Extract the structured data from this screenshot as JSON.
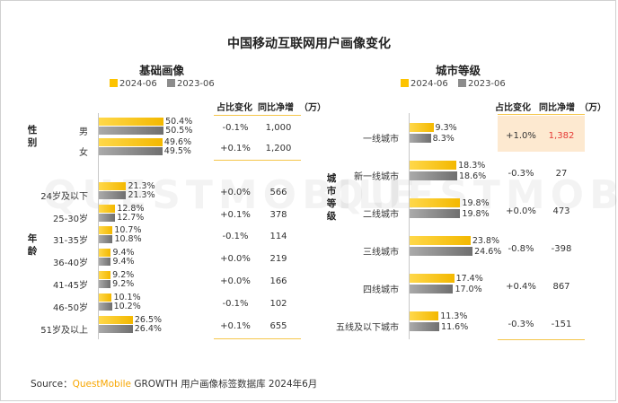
{
  "title": "中国移动互联网用户画像变化",
  "legend": {
    "y2024": "2024-06",
    "y2023": "2023-06"
  },
  "table_headers": {
    "share_change": "占比变化",
    "net_growth": "同比净增",
    "unit": "（万）"
  },
  "colors": {
    "y2024": "#fdc300",
    "y2023": "#8c8c8c",
    "accent": "#f7a600",
    "negative": "#e53935"
  },
  "group_labels": {
    "gender": "性别",
    "age": "年龄",
    "city": "城市等级"
  },
  "watermark": "QUESTMOBILE",
  "source": {
    "prefix": "Source：",
    "brand": "QuestMobile",
    "text": " GROWTH 用户画像标签数据库 2024年6月"
  },
  "chart_data": [
    {
      "type": "bar",
      "orientation": "horizontal",
      "title": "基础画像",
      "unit": "%",
      "groups": [
        {
          "label": "性别",
          "categories": [
            "男",
            "女"
          ]
        },
        {
          "label": "年龄",
          "categories": [
            "24岁及以下",
            "25-30岁",
            "31-35岁",
            "36-40岁",
            "41-45岁",
            "46-50岁",
            "51岁及以上"
          ]
        }
      ],
      "categories": [
        "男",
        "女",
        "24岁及以下",
        "25-30岁",
        "31-35岁",
        "36-40岁",
        "41-45岁",
        "46-50岁",
        "51岁及以上"
      ],
      "series": [
        {
          "name": "2024-06",
          "values": [
            50.4,
            49.6,
            21.3,
            12.8,
            10.7,
            9.4,
            9.2,
            10.1,
            26.5
          ],
          "labels": [
            "50.4%",
            "49.6%",
            "21.3%",
            "12.8%",
            "10.7%",
            "9.4%",
            "9.2%",
            "10.1%",
            "26.5%"
          ]
        },
        {
          "name": "2023-06",
          "values": [
            50.5,
            49.5,
            21.3,
            12.7,
            10.8,
            9.4,
            9.2,
            10.2,
            26.4
          ],
          "labels": [
            "50.5%",
            "49.5%",
            "21.3%",
            "12.7%",
            "10.8%",
            "9.4%",
            "9.2%",
            "10.2%",
            "26.4%"
          ]
        }
      ],
      "table": {
        "share_change": [
          "-0.1%",
          "+0.1%",
          "+0.0%",
          "+0.1%",
          "-0.1%",
          "+0.0%",
          "+0.0%",
          "-0.1%",
          "+0.1%"
        ],
        "net_growth": [
          "1,000",
          "1,200",
          "566",
          "378",
          "114",
          "219",
          "166",
          "102",
          "655"
        ]
      }
    },
    {
      "type": "bar",
      "orientation": "horizontal",
      "title": "城市等级",
      "unit": "%",
      "categories": [
        "一线城市",
        "新一线城市",
        "二线城市",
        "三线城市",
        "四线城市",
        "五线及以下城市"
      ],
      "series": [
        {
          "name": "2024-06",
          "values": [
            9.3,
            18.3,
            19.8,
            23.8,
            17.4,
            11.3
          ],
          "labels": [
            "9.3%",
            "18.3%",
            "19.8%",
            "23.8%",
            "17.4%",
            "11.3%"
          ]
        },
        {
          "name": "2023-06",
          "values": [
            8.3,
            18.6,
            19.8,
            24.6,
            17.0,
            11.6
          ],
          "labels": [
            "8.3%",
            "18.6%",
            "19.8%",
            "24.6%",
            "17.0%",
            "11.6%"
          ]
        }
      ],
      "table": {
        "share_change": [
          "+1.0%",
          "-0.3%",
          "+0.0%",
          "-0.8%",
          "+0.4%",
          "-0.3%"
        ],
        "net_growth": [
          "1,382",
          "27",
          "473",
          "-398",
          "867",
          "-151"
        ],
        "highlight_index": 0
      }
    }
  ]
}
